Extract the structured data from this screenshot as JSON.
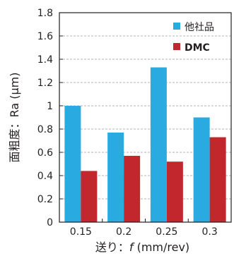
{
  "chart_data": {
    "type": "bar",
    "categories": [
      "0.15",
      "0.2",
      "0.25",
      "0.3"
    ],
    "series": [
      {
        "name": "他社品",
        "color": "#29abe2",
        "values": [
          1.0,
          0.77,
          1.33,
          0.9
        ]
      },
      {
        "name": "DMC",
        "color": "#c1272d",
        "values": [
          0.44,
          0.57,
          0.52,
          0.73
        ]
      }
    ],
    "xlabel_prefix": "送り：",
    "xlabel_var": "f",
    "xlabel_suffix": " (mm/rev)",
    "ylabel": "面粗度：Ra (μm)",
    "ylim": [
      0,
      1.8
    ],
    "yticks": [
      "0",
      "0.2",
      "0.4",
      "0.6",
      "0.8",
      "1",
      "1.2",
      "1.4",
      "1.6",
      "1.8"
    ],
    "grid": "horizontal-dashed",
    "legend_position": "top-right"
  }
}
